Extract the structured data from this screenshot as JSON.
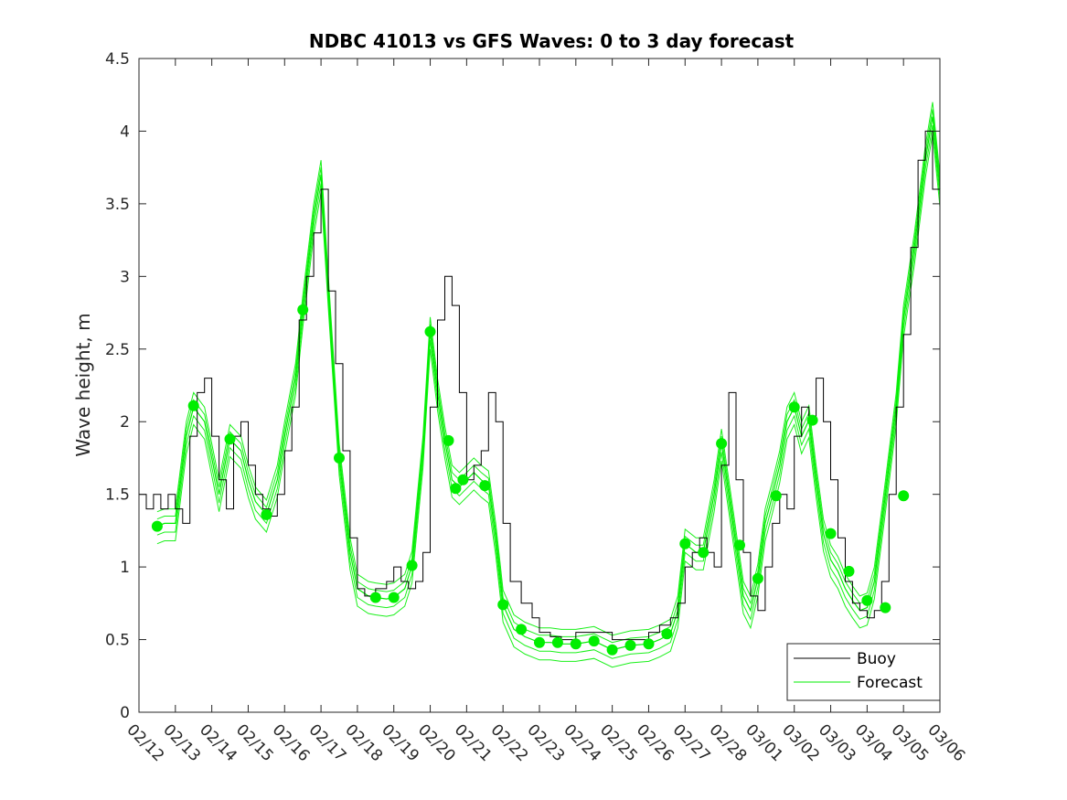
{
  "chart_data": {
    "type": "line",
    "title": "NDBC 41013 vs GFS Waves: 0 to 3 day forecast",
    "xlabel": "",
    "ylabel": "Wave height, m",
    "xlim": [
      12,
      34
    ],
    "ylim": [
      0,
      4.5
    ],
    "x_unit": "day (Feb 12 = 12, Mar 1 = 29)",
    "xticks": [
      12,
      13,
      14,
      15,
      16,
      17,
      18,
      19,
      20,
      21,
      22,
      23,
      24,
      25,
      26,
      27,
      28,
      29,
      30,
      31,
      32,
      33,
      34
    ],
    "xtick_labels": [
      "02/12",
      "02/13",
      "02/14",
      "02/15",
      "02/16",
      "02/17",
      "02/18",
      "02/19",
      "02/20",
      "02/21",
      "02/22",
      "02/23",
      "02/24",
      "02/25",
      "02/26",
      "02/27",
      "02/28",
      "03/01",
      "03/02",
      "03/03",
      "03/04",
      "03/05",
      "03/06"
    ],
    "yticks": [
      0,
      0.5,
      1,
      1.5,
      2,
      2.5,
      3,
      3.5,
      4,
      4.5
    ],
    "ytick_labels": [
      "0",
      "0.5",
      "1",
      "1.5",
      "2",
      "2.5",
      "3",
      "3.5",
      "4",
      "4.5"
    ],
    "grid": false,
    "legend_position": "bottom-right",
    "legend": [
      "Buoy",
      "Forecast"
    ],
    "colors": {
      "buoy": "#000000",
      "forecast": "#00ee00",
      "axes": "#262626"
    },
    "series": [
      {
        "name": "Buoy",
        "x": [
          12.0,
          12.2,
          12.4,
          12.6,
          12.8,
          13.0,
          13.2,
          13.4,
          13.6,
          13.8,
          14.0,
          14.2,
          14.4,
          14.6,
          14.8,
          15.0,
          15.2,
          15.4,
          15.6,
          15.8,
          16.0,
          16.2,
          16.4,
          16.6,
          16.8,
          17.0,
          17.2,
          17.4,
          17.6,
          17.8,
          18.0,
          18.2,
          18.5,
          18.8,
          19.0,
          19.2,
          19.4,
          19.6,
          19.8,
          20.0,
          20.2,
          20.4,
          20.6,
          20.8,
          21.0,
          21.2,
          21.4,
          21.6,
          21.8,
          22.0,
          22.2,
          22.5,
          22.8,
          23.0,
          23.3,
          23.6,
          24.0,
          24.5,
          25.0,
          25.5,
          26.0,
          26.3,
          26.6,
          26.8,
          27.0,
          27.2,
          27.4,
          27.6,
          27.8,
          28.0,
          28.2,
          28.4,
          28.6,
          28.8,
          29.0,
          29.2,
          29.4,
          29.6,
          29.8,
          30.0,
          30.2,
          30.4,
          30.6,
          30.8,
          31.0,
          31.2,
          31.4,
          31.6,
          31.8,
          32.0,
          32.2,
          32.4,
          32.6,
          32.8,
          33.0,
          33.2,
          33.4,
          33.6,
          33.8,
          34.0
        ],
        "y": [
          1.5,
          1.4,
          1.5,
          1.4,
          1.5,
          1.4,
          1.3,
          1.9,
          2.2,
          2.3,
          1.9,
          1.6,
          1.4,
          1.9,
          2.0,
          1.7,
          1.5,
          1.4,
          1.35,
          1.5,
          1.8,
          2.1,
          2.7,
          3.0,
          3.3,
          3.6,
          2.9,
          2.4,
          1.8,
          1.2,
          0.85,
          0.8,
          0.85,
          0.9,
          1.0,
          0.9,
          0.85,
          0.9,
          1.1,
          2.1,
          2.7,
          3.0,
          2.8,
          2.2,
          1.6,
          1.7,
          1.8,
          2.2,
          2.0,
          1.3,
          0.9,
          0.75,
          0.65,
          0.55,
          0.52,
          0.5,
          0.55,
          0.55,
          0.5,
          0.5,
          0.55,
          0.6,
          0.65,
          0.75,
          1.0,
          1.1,
          1.2,
          1.1,
          1.0,
          1.7,
          2.2,
          1.6,
          1.1,
          0.8,
          0.7,
          1.0,
          1.3,
          1.5,
          1.4,
          1.9,
          2.1,
          2.0,
          2.3,
          2.0,
          1.6,
          1.2,
          0.9,
          0.75,
          0.7,
          0.65,
          0.7,
          0.9,
          1.5,
          2.1,
          2.6,
          3.2,
          3.8,
          4.0,
          3.6,
          3.2
        ]
      },
      {
        "name": "Forecast",
        "x": [
          12.5,
          12.7,
          13.0,
          13.3,
          13.5,
          13.8,
          14.0,
          14.2,
          14.5,
          14.8,
          15.0,
          15.2,
          15.5,
          15.8,
          16.0,
          16.3,
          16.5,
          16.8,
          17.0,
          17.2,
          17.5,
          17.8,
          18.0,
          18.3,
          18.5,
          18.8,
          19.0,
          19.3,
          19.5,
          19.8,
          20.0,
          20.2,
          20.4,
          20.6,
          20.8,
          21.0,
          21.2,
          21.4,
          21.6,
          21.8,
          22.0,
          22.3,
          22.6,
          23.0,
          23.3,
          23.6,
          24.0,
          24.5,
          25.0,
          25.5,
          26.0,
          26.3,
          26.6,
          26.8,
          27.0,
          27.3,
          27.5,
          27.8,
          28.0,
          28.2,
          28.4,
          28.6,
          28.8,
          29.0,
          29.2,
          29.4,
          29.6,
          29.8,
          30.0,
          30.2,
          30.4,
          30.6,
          30.8,
          31.0,
          31.2,
          31.4,
          31.6,
          31.8,
          32.0,
          32.2,
          32.5,
          32.8,
          33.0,
          33.3,
          33.6,
          33.8,
          34.0
        ],
        "y": [
          1.28,
          1.3,
          1.3,
          1.9,
          2.1,
          2.0,
          1.75,
          1.5,
          1.88,
          1.8,
          1.6,
          1.45,
          1.36,
          1.6,
          1.9,
          2.3,
          2.77,
          3.4,
          3.7,
          2.9,
          1.75,
          1.1,
          0.85,
          0.8,
          0.79,
          0.78,
          0.79,
          0.85,
          1.01,
          1.8,
          2.62,
          2.2,
          1.87,
          1.6,
          1.55,
          1.6,
          1.65,
          1.6,
          1.56,
          1.2,
          0.74,
          0.57,
          0.52,
          0.48,
          0.48,
          0.47,
          0.47,
          0.49,
          0.43,
          0.46,
          0.47,
          0.5,
          0.54,
          0.7,
          1.16,
          1.1,
          1.1,
          1.5,
          1.85,
          1.5,
          1.15,
          0.8,
          0.7,
          0.92,
          1.3,
          1.49,
          1.7,
          2.0,
          2.1,
          1.9,
          2.01,
          1.6,
          1.23,
          1.05,
          0.97,
          0.85,
          0.77,
          0.7,
          0.72,
          0.9,
          1.49,
          2.1,
          2.7,
          3.2,
          3.8,
          4.1,
          3.6
        ]
      },
      {
        "name": "Forecast (markers)",
        "x": [
          12.5,
          13.5,
          14.5,
          15.5,
          16.5,
          17.5,
          18.5,
          19.0,
          19.5,
          20.0,
          20.5,
          20.7,
          20.9,
          21.5,
          22.0,
          22.5,
          23.0,
          23.5,
          24.0,
          24.5,
          25.0,
          25.5,
          26.0,
          26.5,
          27.0,
          27.5,
          28.0,
          28.5,
          29.0,
          29.5,
          30.0,
          30.5,
          31.0,
          31.5,
          32.0,
          32.5,
          33.0
        ],
        "y": [
          1.28,
          2.11,
          1.88,
          1.36,
          2.77,
          1.75,
          0.79,
          0.79,
          1.01,
          2.62,
          1.87,
          1.54,
          1.6,
          1.56,
          0.74,
          0.57,
          0.48,
          0.48,
          0.47,
          0.49,
          0.43,
          0.46,
          0.47,
          0.54,
          1.16,
          1.1,
          1.85,
          1.15,
          0.92,
          1.49,
          2.1,
          2.01,
          1.23,
          0.97,
          0.77,
          0.72,
          1.49
        ]
      }
    ]
  }
}
